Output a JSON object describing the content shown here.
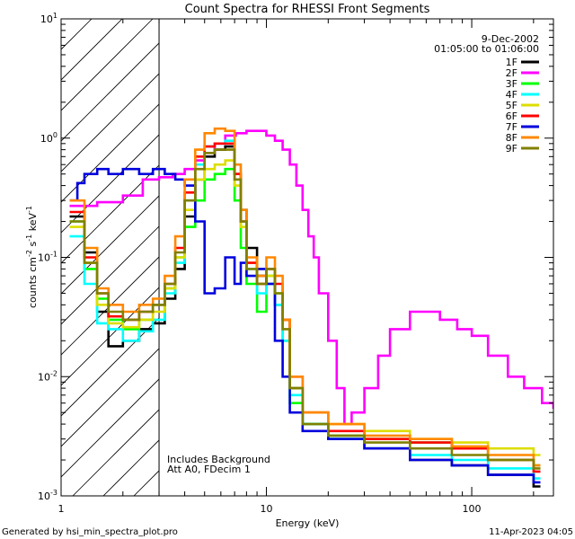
{
  "chart_data": {
    "type": "line",
    "title": "Count Spectra for RHESSI Front Segments",
    "xlabel": "Energy (keV)",
    "ylabel_parts": [
      "counts cm",
      "-2",
      " s",
      "-1",
      " keV",
      "-1"
    ],
    "x_scale": "log",
    "y_scale": "log",
    "xlim": [
      1,
      250
    ],
    "ylim": [
      0.001,
      10
    ],
    "x_tick_labels": [
      {
        "value": 1,
        "label": "1"
      },
      {
        "value": 10,
        "label": "10"
      },
      {
        "value": 100,
        "label": "100"
      }
    ],
    "y_tick_labels": [
      {
        "value": 10,
        "base": "10",
        "exp": "1"
      },
      {
        "value": 1,
        "base": "10",
        "exp": "0"
      },
      {
        "value": 0.1,
        "base": "10",
        "exp": "-1"
      },
      {
        "value": 0.01,
        "base": "10",
        "exp": "-2"
      },
      {
        "value": 0.001,
        "base": "10",
        "exp": "-3"
      }
    ],
    "shaded_region": [
      1,
      3
    ],
    "date": "9-Dec-2002",
    "time_range": "01:05:00 to 01:06:00",
    "annotations": [
      "Includes Background",
      "Att A0, FDecim 1"
    ],
    "series": [
      {
        "name": "1F",
        "color": "#000000",
        "points": [
          [
            1.1,
            0.22
          ],
          [
            1.3,
            0.11
          ],
          [
            1.5,
            0.035
          ],
          [
            1.7,
            0.018
          ],
          [
            2.0,
            0.02
          ],
          [
            2.4,
            0.025
          ],
          [
            2.8,
            0.028
          ],
          [
            3.2,
            0.045
          ],
          [
            3.6,
            0.08
          ],
          [
            4.0,
            0.22
          ],
          [
            4.5,
            0.45
          ],
          [
            5.0,
            0.7
          ],
          [
            5.6,
            0.8
          ],
          [
            6.3,
            0.85
          ],
          [
            7.0,
            0.5
          ],
          [
            7.5,
            0.25
          ],
          [
            8.0,
            0.12
          ],
          [
            9.0,
            0.07
          ],
          [
            10,
            0.06
          ],
          [
            11,
            0.04
          ],
          [
            12,
            0.03
          ],
          [
            13,
            0.008
          ],
          [
            15,
            0.004
          ],
          [
            20,
            0.003
          ],
          [
            30,
            0.0025
          ],
          [
            50,
            0.002
          ],
          [
            80,
            0.0018
          ],
          [
            120,
            0.0015
          ],
          [
            200,
            0.0012
          ]
        ]
      },
      {
        "name": "2F",
        "color": "#ff00ff",
        "points": [
          [
            1.1,
            0.27
          ],
          [
            1.5,
            0.29
          ],
          [
            2.0,
            0.33
          ],
          [
            2.5,
            0.45
          ],
          [
            3.0,
            0.47
          ],
          [
            3.5,
            0.5
          ],
          [
            4.0,
            0.55
          ],
          [
            4.5,
            0.65
          ],
          [
            5.0,
            0.75
          ],
          [
            5.6,
            0.9
          ],
          [
            6.3,
            1.05
          ],
          [
            7.1,
            1.1
          ],
          [
            8.0,
            1.15
          ],
          [
            9.0,
            1.15
          ],
          [
            10,
            1.05
          ],
          [
            11,
            0.95
          ],
          [
            12,
            0.8
          ],
          [
            13,
            0.6
          ],
          [
            14,
            0.4
          ],
          [
            15,
            0.25
          ],
          [
            16,
            0.15
          ],
          [
            17,
            0.1
          ],
          [
            18,
            0.05
          ],
          [
            20,
            0.02
          ],
          [
            22,
            0.008
          ],
          [
            24,
            0.004
          ],
          [
            26,
            0.005
          ],
          [
            30,
            0.008
          ],
          [
            35,
            0.015
          ],
          [
            40,
            0.025
          ],
          [
            50,
            0.035
          ],
          [
            60,
            0.035
          ],
          [
            70,
            0.03
          ],
          [
            85,
            0.025
          ],
          [
            100,
            0.022
          ],
          [
            120,
            0.015
          ],
          [
            150,
            0.01
          ],
          [
            180,
            0.008
          ],
          [
            220,
            0.006
          ],
          [
            250,
            0.0055
          ]
        ]
      },
      {
        "name": "3F",
        "color": "#00ff00",
        "points": [
          [
            1.1,
            0.2
          ],
          [
            1.3,
            0.08
          ],
          [
            1.5,
            0.045
          ],
          [
            1.7,
            0.03
          ],
          [
            2.0,
            0.025
          ],
          [
            2.4,
            0.03
          ],
          [
            2.8,
            0.04
          ],
          [
            3.2,
            0.055
          ],
          [
            3.6,
            0.1
          ],
          [
            4.0,
            0.18
          ],
          [
            4.5,
            0.3
          ],
          [
            5.0,
            0.45
          ],
          [
            5.6,
            0.5
          ],
          [
            6.3,
            0.55
          ],
          [
            7.0,
            0.3
          ],
          [
            7.5,
            0.12
          ],
          [
            8.0,
            0.06
          ],
          [
            9.0,
            0.035
          ],
          [
            10,
            0.07
          ],
          [
            11,
            0.05
          ],
          [
            12,
            0.02
          ],
          [
            13,
            0.006
          ],
          [
            15,
            0.004
          ],
          [
            20,
            0.0032
          ],
          [
            30,
            0.003
          ],
          [
            50,
            0.0028
          ],
          [
            80,
            0.0025
          ],
          [
            120,
            0.002
          ],
          [
            200,
            0.0018
          ]
        ]
      },
      {
        "name": "4F",
        "color": "#00ffff",
        "points": [
          [
            1.1,
            0.15
          ],
          [
            1.3,
            0.06
          ],
          [
            1.5,
            0.028
          ],
          [
            1.7,
            0.025
          ],
          [
            2.0,
            0.02
          ],
          [
            2.4,
            0.024
          ],
          [
            2.8,
            0.03
          ],
          [
            3.2,
            0.05
          ],
          [
            3.6,
            0.09
          ],
          [
            4.0,
            0.3
          ],
          [
            4.5,
            0.6
          ],
          [
            5.0,
            0.85
          ],
          [
            5.6,
            0.9
          ],
          [
            6.3,
            0.95
          ],
          [
            7.0,
            0.6
          ],
          [
            7.5,
            0.2
          ],
          [
            8.0,
            0.08
          ],
          [
            9.0,
            0.05
          ],
          [
            10,
            0.06
          ],
          [
            11,
            0.04
          ],
          [
            12,
            0.02
          ],
          [
            13,
            0.007
          ],
          [
            15,
            0.004
          ],
          [
            20,
            0.003
          ],
          [
            30,
            0.0025
          ],
          [
            50,
            0.0022
          ],
          [
            80,
            0.002
          ],
          [
            120,
            0.0017
          ],
          [
            200,
            0.0014
          ]
        ]
      },
      {
        "name": "5F",
        "color": "#dddd00",
        "points": [
          [
            1.1,
            0.18
          ],
          [
            1.3,
            0.09
          ],
          [
            1.5,
            0.04
          ],
          [
            1.7,
            0.028
          ],
          [
            2.0,
            0.026
          ],
          [
            2.4,
            0.03
          ],
          [
            2.8,
            0.035
          ],
          [
            3.2,
            0.055
          ],
          [
            3.6,
            0.1
          ],
          [
            4.0,
            0.25
          ],
          [
            4.5,
            0.45
          ],
          [
            5.0,
            0.55
          ],
          [
            5.6,
            0.6
          ],
          [
            6.3,
            0.65
          ],
          [
            7.0,
            0.4
          ],
          [
            7.5,
            0.18
          ],
          [
            8.0,
            0.09
          ],
          [
            9.0,
            0.06
          ],
          [
            10,
            0.07
          ],
          [
            11,
            0.05
          ],
          [
            12,
            0.03
          ],
          [
            13,
            0.008
          ],
          [
            15,
            0.005
          ],
          [
            20,
            0.004
          ],
          [
            30,
            0.0035
          ],
          [
            50,
            0.003
          ],
          [
            80,
            0.0028
          ],
          [
            120,
            0.0025
          ],
          [
            200,
            0.0022
          ]
        ]
      },
      {
        "name": "6F",
        "color": "#ff0000",
        "points": [
          [
            1.1,
            0.24
          ],
          [
            1.3,
            0.1
          ],
          [
            1.5,
            0.05
          ],
          [
            1.7,
            0.032
          ],
          [
            2.0,
            0.03
          ],
          [
            2.4,
            0.035
          ],
          [
            2.8,
            0.04
          ],
          [
            3.2,
            0.06
          ],
          [
            3.6,
            0.12
          ],
          [
            4.0,
            0.35
          ],
          [
            4.5,
            0.7
          ],
          [
            5.0,
            0.85
          ],
          [
            5.6,
            0.9
          ],
          [
            6.3,
            0.9
          ],
          [
            7.0,
            0.5
          ],
          [
            7.5,
            0.2
          ],
          [
            8.0,
            0.09
          ],
          [
            9.0,
            0.06
          ],
          [
            10,
            0.08
          ],
          [
            11,
            0.06
          ],
          [
            12,
            0.03
          ],
          [
            13,
            0.01
          ],
          [
            15,
            0.005
          ],
          [
            20,
            0.0035
          ],
          [
            30,
            0.003
          ],
          [
            50,
            0.0028
          ],
          [
            80,
            0.0025
          ],
          [
            120,
            0.002
          ],
          [
            200,
            0.0016
          ]
        ]
      },
      {
        "name": "7F",
        "color": "#0000dd",
        "points": [
          [
            1.1,
            0.3
          ],
          [
            1.2,
            0.42
          ],
          [
            1.3,
            0.5
          ],
          [
            1.5,
            0.55
          ],
          [
            1.7,
            0.5
          ],
          [
            2.0,
            0.55
          ],
          [
            2.4,
            0.5
          ],
          [
            2.8,
            0.55
          ],
          [
            3.2,
            0.5
          ],
          [
            3.6,
            0.45
          ],
          [
            4.0,
            0.4
          ],
          [
            4.5,
            0.2
          ],
          [
            5.0,
            0.05
          ],
          [
            5.6,
            0.055
          ],
          [
            6.3,
            0.1
          ],
          [
            7.0,
            0.06
          ],
          [
            7.5,
            0.09
          ],
          [
            8.0,
            0.07
          ],
          [
            9.0,
            0.08
          ],
          [
            10,
            0.06
          ],
          [
            11,
            0.02
          ],
          [
            12,
            0.01
          ],
          [
            13,
            0.005
          ],
          [
            15,
            0.0035
          ],
          [
            20,
            0.003
          ],
          [
            30,
            0.0025
          ],
          [
            50,
            0.002
          ],
          [
            80,
            0.0018
          ],
          [
            120,
            0.0015
          ],
          [
            200,
            0.0013
          ]
        ]
      },
      {
        "name": "8F",
        "color": "#ff8800",
        "points": [
          [
            1.1,
            0.3
          ],
          [
            1.3,
            0.12
          ],
          [
            1.5,
            0.055
          ],
          [
            1.7,
            0.04
          ],
          [
            2.0,
            0.035
          ],
          [
            2.4,
            0.04
          ],
          [
            2.8,
            0.045
          ],
          [
            3.2,
            0.07
          ],
          [
            3.6,
            0.15
          ],
          [
            4.0,
            0.45
          ],
          [
            4.5,
            0.8
          ],
          [
            5.0,
            1.1
          ],
          [
            5.6,
            1.2
          ],
          [
            6.3,
            1.15
          ],
          [
            7.0,
            0.6
          ],
          [
            7.5,
            0.25
          ],
          [
            8.0,
            0.1
          ],
          [
            9.0,
            0.07
          ],
          [
            10,
            0.1
          ],
          [
            11,
            0.07
          ],
          [
            12,
            0.03
          ],
          [
            13,
            0.01
          ],
          [
            15,
            0.005
          ],
          [
            20,
            0.004
          ],
          [
            30,
            0.0032
          ],
          [
            50,
            0.003
          ],
          [
            80,
            0.0026
          ],
          [
            120,
            0.0022
          ],
          [
            200,
            0.0018
          ]
        ]
      },
      {
        "name": "9F",
        "color": "#808000",
        "points": [
          [
            1.1,
            0.2
          ],
          [
            1.3,
            0.09
          ],
          [
            1.5,
            0.05
          ],
          [
            1.7,
            0.035
          ],
          [
            2.0,
            0.03
          ],
          [
            2.4,
            0.035
          ],
          [
            2.8,
            0.04
          ],
          [
            3.2,
            0.06
          ],
          [
            3.6,
            0.11
          ],
          [
            4.0,
            0.3
          ],
          [
            4.5,
            0.55
          ],
          [
            5.0,
            0.75
          ],
          [
            5.6,
            0.8
          ],
          [
            6.3,
            0.8
          ],
          [
            7.0,
            0.45
          ],
          [
            7.5,
            0.2
          ],
          [
            8.0,
            0.08
          ],
          [
            9.0,
            0.06
          ],
          [
            10,
            0.08
          ],
          [
            11,
            0.05
          ],
          [
            12,
            0.025
          ],
          [
            13,
            0.008
          ],
          [
            15,
            0.004
          ],
          [
            20,
            0.0032
          ],
          [
            30,
            0.0028
          ],
          [
            50,
            0.0025
          ],
          [
            80,
            0.0022
          ],
          [
            120,
            0.002
          ],
          [
            200,
            0.0017
          ]
        ]
      }
    ]
  },
  "footer": {
    "left": "Generated by hsi_min_spectra_plot.pro",
    "right": "11-Apr-2023 04:05"
  }
}
